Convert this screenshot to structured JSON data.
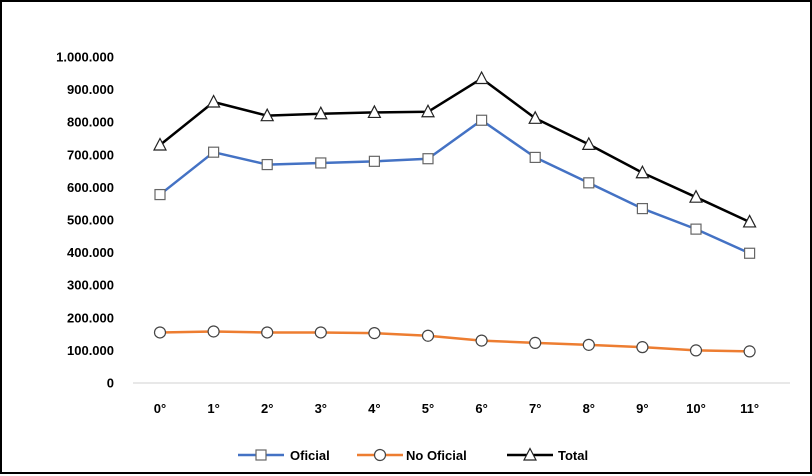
{
  "chart_data": {
    "type": "line",
    "categories": [
      "0°",
      "1°",
      "2°",
      "3°",
      "4°",
      "5°",
      "6°",
      "7°",
      "8°",
      "9°",
      "10°",
      "11°"
    ],
    "y_ticks": [
      "0",
      "100.000",
      "200.000",
      "300.000",
      "400.000",
      "500.000",
      "600.000",
      "700.000",
      "800.000",
      "900.000",
      "1.000.000"
    ],
    "ylim": [
      0,
      1000000
    ],
    "grid": false,
    "legend_position": "bottom",
    "series": [
      {
        "name": "Oficial",
        "color": "#4472C4",
        "marker": "square",
        "values": [
          578000,
          708000,
          670000,
          675000,
          680000,
          688000,
          806000,
          692000,
          614000,
          535000,
          472000,
          398000
        ]
      },
      {
        "name": "No Oficial",
        "color": "#ED7D31",
        "marker": "circle",
        "values": [
          155000,
          158000,
          155000,
          155000,
          153000,
          145000,
          130000,
          123000,
          117000,
          110000,
          100000,
          97000
        ]
      },
      {
        "name": "Total",
        "color": "#000000",
        "marker": "triangle",
        "values": [
          730000,
          862000,
          820000,
          826000,
          830000,
          832000,
          934000,
          812000,
          732000,
          645000,
          570000,
          494000
        ]
      }
    ]
  }
}
